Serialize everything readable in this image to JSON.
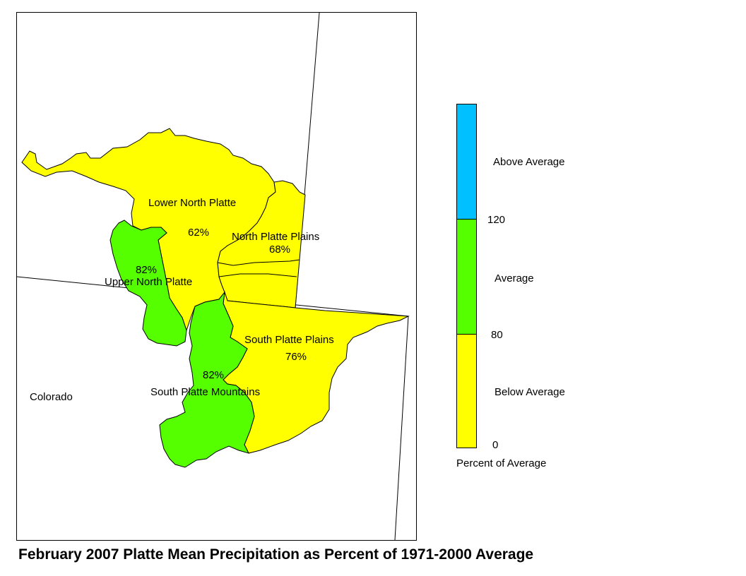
{
  "title": "February 2007 Platte Mean Precipitation as Percent of 1971-2000 Average",
  "colors": {
    "below_average": "#ffff00",
    "average": "#55ff00",
    "above_average": "#00c0ff",
    "outline": "#000000",
    "background": "#ffffff"
  },
  "basins": [
    {
      "name": "Lower North Platte",
      "value": "62%",
      "category": "below_average"
    },
    {
      "name": "North Platte Plains",
      "value": "68%",
      "category": "below_average"
    },
    {
      "name": "Upper North Platte",
      "value": "82%",
      "category": "average"
    },
    {
      "name": "South Platte Plains",
      "value": "76%",
      "category": "below_average"
    },
    {
      "name": "South Platte Mountains",
      "value": "82%",
      "category": "average"
    }
  ],
  "state_label": "Colorado",
  "legend": {
    "title": "Percent of Average",
    "categories": [
      {
        "label": "Above Average",
        "color": "#00c0ff"
      },
      {
        "label": "Average",
        "color": "#55ff00"
      },
      {
        "label": "Below Average",
        "color": "#ffff00"
      }
    ],
    "ticks": [
      "120",
      "80",
      "0"
    ]
  }
}
